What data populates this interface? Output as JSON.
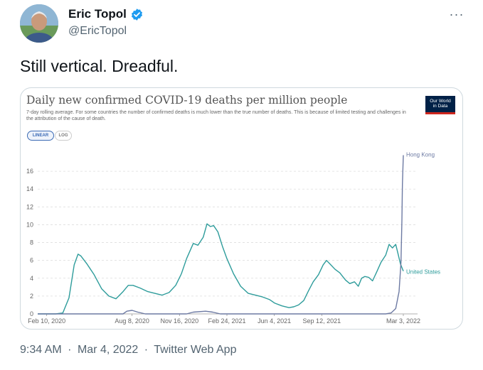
{
  "user": {
    "display_name": "Eric Topol",
    "handle": "@EricTopol",
    "verified": true,
    "verified_color": "#1d9bf0"
  },
  "more_label": "···",
  "tweet": {
    "text": "Still vertical. Dreadful."
  },
  "meta": {
    "time": "9:34 AM",
    "date": "Mar 4, 2022",
    "source": "Twitter Web App",
    "separator": "·"
  },
  "chart_controls": {
    "linear_label": "LINEAR",
    "log_label": "LOG",
    "selected": "linear"
  },
  "logo": {
    "line1": "Our World",
    "line2": "in Data"
  },
  "chart_data": {
    "type": "line",
    "title": "Daily new confirmed COVID-19 deaths per million people",
    "subtitle": "7-day rolling average. For some countries the number of confirmed deaths is much lower than the true number of deaths. This is because of limited testing and challenges in the attribution of the cause of death.",
    "xlabel": "",
    "ylabel": "",
    "ylim": [
      0,
      18
    ],
    "yticks": [
      0,
      2,
      4,
      6,
      8,
      10,
      12,
      14,
      16
    ],
    "xticks": [
      "Feb 10, 2020",
      "Aug 8, 2020",
      "Nov 16, 2020",
      "Feb 24, 2021",
      "Jun 4, 2021",
      "Sep 12, 2021",
      "Mar 3, 2022"
    ],
    "xlim": [
      "2020-01-22",
      "2022-03-03"
    ],
    "grid": true,
    "series": [
      {
        "name": "United States",
        "color": "#2e9c9b",
        "points": [
          [
            "2020-01-22",
            0
          ],
          [
            "2020-02-29",
            0
          ],
          [
            "2020-03-15",
            0.1
          ],
          [
            "2020-03-28",
            1.8
          ],
          [
            "2020-04-08",
            5.5
          ],
          [
            "2020-04-16",
            6.7
          ],
          [
            "2020-04-22",
            6.5
          ],
          [
            "2020-05-05",
            5.6
          ],
          [
            "2020-05-20",
            4.4
          ],
          [
            "2020-06-05",
            2.8
          ],
          [
            "2020-06-20",
            2.0
          ],
          [
            "2020-07-05",
            1.7
          ],
          [
            "2020-07-20",
            2.5
          ],
          [
            "2020-07-31",
            3.2
          ],
          [
            "2020-08-10",
            3.2
          ],
          [
            "2020-08-25",
            2.9
          ],
          [
            "2020-09-10",
            2.5
          ],
          [
            "2020-09-25",
            2.3
          ],
          [
            "2020-10-10",
            2.1
          ],
          [
            "2020-10-25",
            2.4
          ],
          [
            "2020-11-08",
            3.2
          ],
          [
            "2020-11-20",
            4.5
          ],
          [
            "2020-12-01",
            6.2
          ],
          [
            "2020-12-15",
            7.9
          ],
          [
            "2020-12-25",
            7.7
          ],
          [
            "2021-01-05",
            8.6
          ],
          [
            "2021-01-13",
            10.1
          ],
          [
            "2021-01-20",
            9.8
          ],
          [
            "2021-01-27",
            9.9
          ],
          [
            "2021-02-05",
            9.2
          ],
          [
            "2021-02-15",
            7.5
          ],
          [
            "2021-02-24",
            6.2
          ],
          [
            "2021-03-10",
            4.5
          ],
          [
            "2021-03-25",
            3.1
          ],
          [
            "2021-04-10",
            2.3
          ],
          [
            "2021-04-25",
            2.1
          ],
          [
            "2021-05-10",
            1.9
          ],
          [
            "2021-05-25",
            1.6
          ],
          [
            "2021-06-05",
            1.2
          ],
          [
            "2021-06-20",
            0.9
          ],
          [
            "2021-07-05",
            0.7
          ],
          [
            "2021-07-15",
            0.8
          ],
          [
            "2021-07-25",
            1.0
          ],
          [
            "2021-08-05",
            1.5
          ],
          [
            "2021-08-15",
            2.6
          ],
          [
            "2021-08-25",
            3.6
          ],
          [
            "2021-09-05",
            4.4
          ],
          [
            "2021-09-15",
            5.5
          ],
          [
            "2021-09-22",
            6.0
          ],
          [
            "2021-10-01",
            5.5
          ],
          [
            "2021-10-10",
            5.0
          ],
          [
            "2021-10-20",
            4.6
          ],
          [
            "2021-11-01",
            3.8
          ],
          [
            "2021-11-10",
            3.4
          ],
          [
            "2021-11-20",
            3.6
          ],
          [
            "2021-11-28",
            3.1
          ],
          [
            "2021-12-05",
            4.0
          ],
          [
            "2021-12-12",
            4.2
          ],
          [
            "2021-12-20",
            4.1
          ],
          [
            "2021-12-28",
            3.7
          ],
          [
            "2022-01-05",
            4.6
          ],
          [
            "2022-01-15",
            5.8
          ],
          [
            "2022-01-25",
            6.6
          ],
          [
            "2022-02-01",
            7.8
          ],
          [
            "2022-02-08",
            7.4
          ],
          [
            "2022-02-15",
            7.8
          ],
          [
            "2022-02-20",
            6.7
          ],
          [
            "2022-02-25",
            5.6
          ],
          [
            "2022-03-03",
            4.8
          ]
        ]
      },
      {
        "name": "Hong Kong",
        "color": "#6d7aa3",
        "points": [
          [
            "2020-01-22",
            0
          ],
          [
            "2020-07-20",
            0
          ],
          [
            "2020-07-28",
            0.3
          ],
          [
            "2020-08-08",
            0.4
          ],
          [
            "2020-08-20",
            0.2
          ],
          [
            "2020-09-05",
            0
          ],
          [
            "2020-12-01",
            0
          ],
          [
            "2020-12-15",
            0.2
          ],
          [
            "2021-01-10",
            0.3
          ],
          [
            "2021-01-25",
            0.2
          ],
          [
            "2021-02-10",
            0
          ],
          [
            "2022-01-25",
            0
          ],
          [
            "2022-02-05",
            0.1
          ],
          [
            "2022-02-15",
            0.6
          ],
          [
            "2022-02-22",
            2.5
          ],
          [
            "2022-02-26",
            5.8
          ],
          [
            "2022-02-28",
            10.5
          ],
          [
            "2022-03-01",
            14.5
          ],
          [
            "2022-03-03",
            17.8
          ]
        ]
      }
    ]
  }
}
